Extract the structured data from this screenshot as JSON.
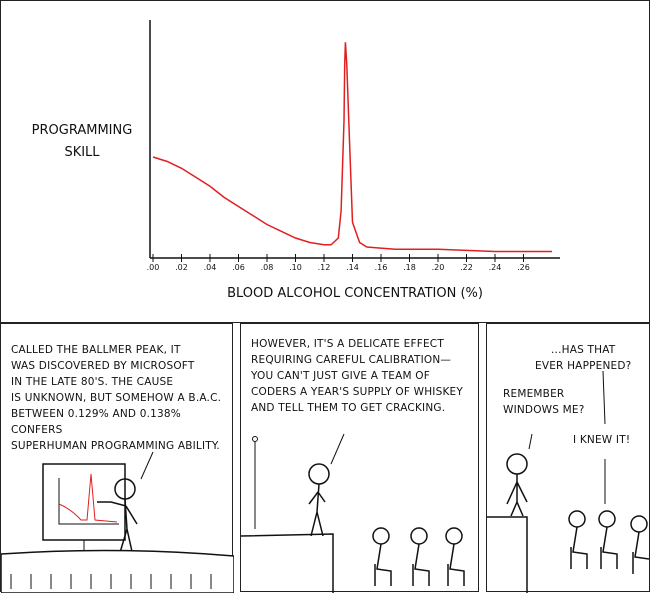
{
  "chart_data": {
    "type": "line",
    "ylabel": "PROGRAMMING SKILL",
    "xlabel": "BLOOD ALCOHOL CONCENTRATION (%)",
    "tick_labels": [
      ".00",
      ".02",
      ".04",
      ".06",
      ".08",
      ".10",
      ".12",
      ".14",
      ".16",
      ".18",
      ".20",
      ".22",
      ".24",
      ".26"
    ],
    "xlim": [
      0,
      0.28
    ],
    "line_color": "#e02020",
    "series": [
      {
        "x": [
          0.0,
          0.01,
          0.02,
          0.03,
          0.04,
          0.05,
          0.06,
          0.07,
          0.08,
          0.09,
          0.1,
          0.11,
          0.12,
          0.125,
          0.13,
          0.132,
          0.134,
          0.1345,
          0.135,
          0.136,
          0.138,
          0.14,
          0.145,
          0.15,
          0.17,
          0.2,
          0.24,
          0.28
        ],
        "y": [
          0.44,
          0.42,
          0.39,
          0.35,
          0.31,
          0.26,
          0.22,
          0.18,
          0.14,
          0.11,
          0.08,
          0.06,
          0.05,
          0.05,
          0.08,
          0.2,
          0.6,
          0.85,
          0.95,
          0.85,
          0.5,
          0.15,
          0.06,
          0.04,
          0.03,
          0.03,
          0.02,
          0.02
        ]
      }
    ]
  },
  "panels": [
    {
      "caption": [
        "CALLED THE BALLMER PEAK, IT",
        "WAS DISCOVERED BY MICROSOFT",
        "IN THE LATE 80's. THE CAUSE",
        "IS UNKNOWN, BUT SOMEHOW A B.A.C.",
        "BETWEEN 0.129% AND 0.138% CONFERS",
        "SUPERHUMAN PROGRAMMING ABILITY."
      ]
    },
    {
      "caption": [
        "HOWEVER, IT'S A DELICATE EFFECT",
        "REQUIRING CAREFUL CALIBRATION—",
        "YOU CAN'T JUST GIVE A TEAM OF",
        "CODERS A YEAR'S SUPPLY OF WHISKEY",
        "AND TELL THEM TO GET CRACKING."
      ]
    },
    {
      "speech1": [
        "...HAS THAT",
        "EVER HAPPENED?"
      ],
      "speech2": [
        "REMEMBER",
        "WINDOWS ME?"
      ],
      "speech3": "I KNEW IT!"
    }
  ]
}
